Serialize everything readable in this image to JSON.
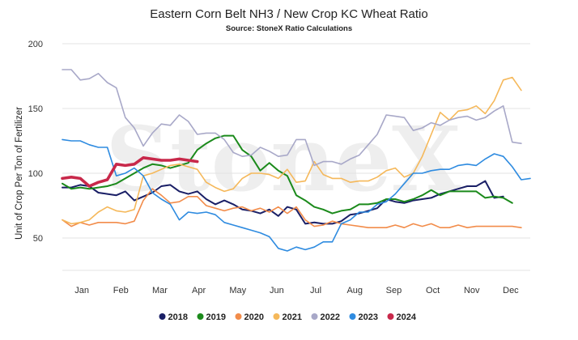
{
  "chart_data": {
    "type": "line",
    "title": "Eastern Corn Belt NH3 / New Crop KC Wheat Ratio",
    "subtitle": "Source: StoneX Ratio Calculations",
    "watermark": "StoneX",
    "ylabel": "Unit of Crop Per Ton of Fertilizer",
    "xlabel": "",
    "ylim": [
      25,
      200
    ],
    "yticks": [
      50,
      100,
      150,
      200
    ],
    "xlim": [
      0,
      52
    ],
    "month_labels": [
      "Jan",
      "Feb",
      "Mar",
      "Apr",
      "May",
      "Jun",
      "Jul",
      "Aug",
      "Sep",
      "Oct",
      "Nov",
      "Dec"
    ],
    "grid": true,
    "legend_position": "bottom",
    "series": [
      {
        "name": "2018",
        "color": "#1a1f66",
        "values": [
          [
            0,
            89
          ],
          [
            1,
            89
          ],
          [
            2,
            91
          ],
          [
            3,
            90
          ],
          [
            4,
            85
          ],
          [
            5,
            84
          ],
          [
            6,
            83
          ],
          [
            7,
            86
          ],
          [
            8,
            79
          ],
          [
            9,
            82
          ],
          [
            10,
            85
          ],
          [
            11,
            90
          ],
          [
            12,
            91
          ],
          [
            13,
            86
          ],
          [
            14,
            84
          ],
          [
            15,
            86
          ],
          [
            16,
            80
          ],
          [
            17,
            76
          ],
          [
            18,
            79
          ],
          [
            19,
            76
          ],
          [
            20,
            72
          ],
          [
            21,
            71
          ],
          [
            22,
            69
          ],
          [
            23,
            72
          ],
          [
            24,
            67
          ],
          [
            25,
            74
          ],
          [
            26,
            72
          ],
          [
            27,
            61
          ],
          [
            28,
            62
          ],
          [
            29,
            61
          ],
          [
            30,
            61
          ],
          [
            31,
            63
          ],
          [
            32,
            68
          ],
          [
            33,
            69
          ],
          [
            34,
            71
          ],
          [
            35,
            73
          ],
          [
            36,
            80
          ],
          [
            37,
            78
          ],
          [
            38,
            77
          ],
          [
            39,
            79
          ],
          [
            40,
            80
          ],
          [
            41,
            81
          ],
          [
            42,
            84
          ],
          [
            43,
            86
          ],
          [
            44,
            88
          ],
          [
            45,
            90
          ],
          [
            46,
            90
          ],
          [
            47,
            94
          ],
          [
            48,
            81
          ],
          [
            49,
            82
          ]
        ],
        "width": 2
      },
      {
        "name": "2019",
        "color": "#1b8a1b",
        "values": [
          [
            0,
            92
          ],
          [
            1,
            88
          ],
          [
            2,
            89
          ],
          [
            3,
            88
          ],
          [
            4,
            89
          ],
          [
            5,
            90
          ],
          [
            6,
            92
          ],
          [
            7,
            96
          ],
          [
            8,
            100
          ],
          [
            9,
            104
          ],
          [
            10,
            107
          ],
          [
            11,
            106
          ],
          [
            12,
            104
          ],
          [
            13,
            106
          ],
          [
            14,
            108
          ],
          [
            15,
            118
          ],
          [
            16,
            123
          ],
          [
            17,
            127
          ],
          [
            18,
            129
          ],
          [
            19,
            129
          ],
          [
            20,
            118
          ],
          [
            21,
            113
          ],
          [
            22,
            102
          ],
          [
            23,
            108
          ],
          [
            24,
            102
          ],
          [
            25,
            98
          ],
          [
            26,
            83
          ],
          [
            27,
            79
          ],
          [
            28,
            74
          ],
          [
            29,
            72
          ],
          [
            30,
            69
          ],
          [
            31,
            71
          ],
          [
            32,
            72
          ],
          [
            33,
            76
          ],
          [
            34,
            76
          ],
          [
            35,
            77
          ],
          [
            36,
            80
          ],
          [
            37,
            80
          ],
          [
            38,
            78
          ],
          [
            39,
            80
          ],
          [
            40,
            83
          ],
          [
            41,
            87
          ],
          [
            42,
            83
          ],
          [
            43,
            86
          ],
          [
            44,
            86
          ],
          [
            45,
            86
          ],
          [
            46,
            86
          ],
          [
            47,
            81
          ],
          [
            48,
            82
          ],
          [
            49,
            81
          ],
          [
            50,
            77
          ]
        ],
        "width": 2
      },
      {
        "name": "2020",
        "color": "#f28c4a",
        "values": [
          [
            0,
            64
          ],
          [
            1,
            59
          ],
          [
            2,
            62
          ],
          [
            3,
            60
          ],
          [
            4,
            62
          ],
          [
            5,
            62
          ],
          [
            6,
            62
          ],
          [
            7,
            61
          ],
          [
            8,
            63
          ],
          [
            9,
            79
          ],
          [
            10,
            88
          ],
          [
            11,
            83
          ],
          [
            12,
            77
          ],
          [
            13,
            78
          ],
          [
            14,
            82
          ],
          [
            15,
            82
          ],
          [
            16,
            75
          ],
          [
            17,
            73
          ],
          [
            18,
            71
          ],
          [
            19,
            73
          ],
          [
            20,
            74
          ],
          [
            21,
            71
          ],
          [
            22,
            73
          ],
          [
            23,
            70
          ],
          [
            24,
            74
          ],
          [
            25,
            69
          ],
          [
            26,
            74
          ],
          [
            27,
            64
          ],
          [
            28,
            59
          ],
          [
            29,
            60
          ],
          [
            30,
            63
          ],
          [
            31,
            61
          ],
          [
            32,
            60
          ],
          [
            33,
            59
          ],
          [
            34,
            58
          ],
          [
            35,
            58
          ],
          [
            36,
            58
          ],
          [
            37,
            60
          ],
          [
            38,
            58
          ],
          [
            39,
            61
          ],
          [
            40,
            59
          ],
          [
            41,
            61
          ],
          [
            42,
            58
          ],
          [
            43,
            58
          ],
          [
            44,
            60
          ],
          [
            45,
            58
          ],
          [
            46,
            59
          ],
          [
            47,
            59
          ],
          [
            48,
            59
          ],
          [
            49,
            59
          ],
          [
            50,
            59
          ],
          [
            51,
            58
          ]
        ],
        "width": 1.6
      },
      {
        "name": "2021",
        "color": "#f5b85a",
        "values": [
          [
            0,
            64
          ],
          [
            1,
            61
          ],
          [
            2,
            62
          ],
          [
            3,
            64
          ],
          [
            4,
            70
          ],
          [
            5,
            74
          ],
          [
            6,
            71
          ],
          [
            7,
            70
          ],
          [
            8,
            72
          ],
          [
            9,
            98
          ],
          [
            10,
            100
          ],
          [
            11,
            103
          ],
          [
            12,
            106
          ],
          [
            13,
            107
          ],
          [
            14,
            105
          ],
          [
            15,
            103
          ],
          [
            16,
            93
          ],
          [
            17,
            89
          ],
          [
            18,
            86
          ],
          [
            19,
            88
          ],
          [
            20,
            96
          ],
          [
            21,
            100
          ],
          [
            22,
            100
          ],
          [
            23,
            99
          ],
          [
            24,
            96
          ],
          [
            25,
            103
          ],
          [
            26,
            93
          ],
          [
            27,
            94
          ],
          [
            28,
            109
          ],
          [
            29,
            99
          ],
          [
            30,
            96
          ],
          [
            31,
            96
          ],
          [
            32,
            93
          ],
          [
            33,
            94
          ],
          [
            34,
            94
          ],
          [
            35,
            97
          ],
          [
            36,
            102
          ],
          [
            37,
            104
          ],
          [
            38,
            97
          ],
          [
            39,
            100
          ],
          [
            40,
            113
          ],
          [
            41,
            130
          ],
          [
            42,
            147
          ],
          [
            43,
            141
          ],
          [
            44,
            148
          ],
          [
            45,
            149
          ],
          [
            46,
            152
          ],
          [
            47,
            146
          ],
          [
            48,
            156
          ],
          [
            49,
            172
          ],
          [
            50,
            174
          ],
          [
            51,
            164
          ]
        ],
        "width": 1.6
      },
      {
        "name": "2022",
        "color": "#a8a8c8",
        "values": [
          [
            0,
            180
          ],
          [
            1,
            180
          ],
          [
            2,
            172
          ],
          [
            3,
            173
          ],
          [
            4,
            177
          ],
          [
            5,
            170
          ],
          [
            6,
            166
          ],
          [
            7,
            143
          ],
          [
            8,
            135
          ],
          [
            9,
            121
          ],
          [
            10,
            131
          ],
          [
            11,
            138
          ],
          [
            12,
            137
          ],
          [
            13,
            145
          ],
          [
            14,
            140
          ],
          [
            15,
            130
          ],
          [
            16,
            131
          ],
          [
            17,
            131
          ],
          [
            18,
            126
          ],
          [
            19,
            116
          ],
          [
            20,
            113
          ],
          [
            21,
            114
          ],
          [
            22,
            120
          ],
          [
            23,
            117
          ],
          [
            24,
            113
          ],
          [
            25,
            114
          ],
          [
            26,
            126
          ],
          [
            27,
            126
          ],
          [
            28,
            106
          ],
          [
            29,
            109
          ],
          [
            30,
            109
          ],
          [
            31,
            107
          ],
          [
            32,
            111
          ],
          [
            33,
            114
          ],
          [
            34,
            122
          ],
          [
            35,
            130
          ],
          [
            36,
            145
          ],
          [
            37,
            144
          ],
          [
            38,
            143
          ],
          [
            39,
            133
          ],
          [
            40,
            135
          ],
          [
            41,
            139
          ],
          [
            42,
            137
          ],
          [
            43,
            141
          ],
          [
            44,
            143
          ],
          [
            45,
            144
          ],
          [
            46,
            141
          ],
          [
            47,
            143
          ],
          [
            48,
            148
          ],
          [
            49,
            152
          ],
          [
            50,
            124
          ],
          [
            51,
            123
          ]
        ],
        "width": 1.6
      },
      {
        "name": "2023",
        "color": "#2e8be0",
        "values": [
          [
            0,
            126
          ],
          [
            1,
            125
          ],
          [
            2,
            125
          ],
          [
            3,
            122
          ],
          [
            4,
            120
          ],
          [
            5,
            120
          ],
          [
            6,
            98
          ],
          [
            7,
            100
          ],
          [
            8,
            104
          ],
          [
            9,
            98
          ],
          [
            10,
            85
          ],
          [
            11,
            80
          ],
          [
            12,
            76
          ],
          [
            13,
            64
          ],
          [
            14,
            70
          ],
          [
            15,
            69
          ],
          [
            16,
            70
          ],
          [
            17,
            68
          ],
          [
            18,
            62
          ],
          [
            19,
            60
          ],
          [
            20,
            58
          ],
          [
            21,
            56
          ],
          [
            22,
            54
          ],
          [
            23,
            51
          ],
          [
            24,
            42
          ],
          [
            25,
            40
          ],
          [
            26,
            43
          ],
          [
            27,
            41
          ],
          [
            28,
            43
          ],
          [
            29,
            47
          ],
          [
            30,
            47
          ],
          [
            31,
            61
          ],
          [
            32,
            64
          ],
          [
            33,
            70
          ],
          [
            34,
            70
          ],
          [
            35,
            76
          ],
          [
            36,
            78
          ],
          [
            37,
            84
          ],
          [
            38,
            92
          ],
          [
            39,
            100
          ],
          [
            40,
            100
          ],
          [
            41,
            102
          ],
          [
            42,
            103
          ],
          [
            43,
            103
          ],
          [
            44,
            106
          ],
          [
            45,
            107
          ],
          [
            46,
            106
          ],
          [
            47,
            111
          ],
          [
            48,
            115
          ],
          [
            49,
            113
          ],
          [
            50,
            105
          ],
          [
            51,
            95
          ],
          [
            52,
            96
          ]
        ],
        "width": 1.6
      },
      {
        "name": "2024",
        "color": "#c8284a",
        "values": [
          [
            0,
            96
          ],
          [
            1,
            97
          ],
          [
            2,
            96
          ],
          [
            3,
            90
          ],
          [
            4,
            93
          ],
          [
            5,
            95
          ],
          [
            6,
            107
          ],
          [
            7,
            106
          ],
          [
            8,
            107
          ],
          [
            9,
            112
          ],
          [
            10,
            111
          ],
          [
            11,
            110
          ],
          [
            12,
            110
          ],
          [
            13,
            111
          ],
          [
            14,
            110
          ],
          [
            15,
            109
          ]
        ],
        "width": 3.6
      }
    ]
  }
}
